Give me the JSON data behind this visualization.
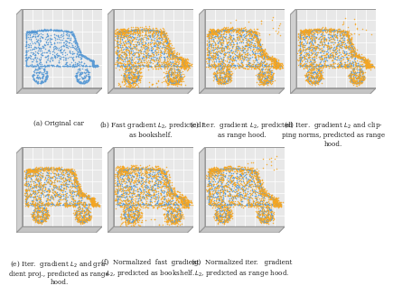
{
  "figure_background": "#ffffff",
  "captions": [
    "(a) Original car",
    "(b) Fast gradient $L_2$, predicted\nas bookshelf.",
    "(c) Iter.  gradient $L_2$, predicted\nas range hood.",
    "(d) Iter.  gradient $L_2$ and clip-\nping norms, predicted as range\nhood.",
    "(e) Iter.  gradient $L_2$ and gra-\ndient proj., predicted as range\nhood.",
    "(f)  Normalized  fast  gradient\n$L_2$, predicted as bookshelf.",
    "(g)  Normalized iter.   gradient\n$L_2$, predicted as range hood."
  ],
  "blue_color": "#5b9bd5",
  "orange_color": "#f5a623",
  "grid_color": "#ffffff",
  "back_face_color": "#e8e8e8",
  "left_face_color": "#d0d0d0",
  "bottom_face_color": "#c4c4c4",
  "edge_color": "#999999"
}
